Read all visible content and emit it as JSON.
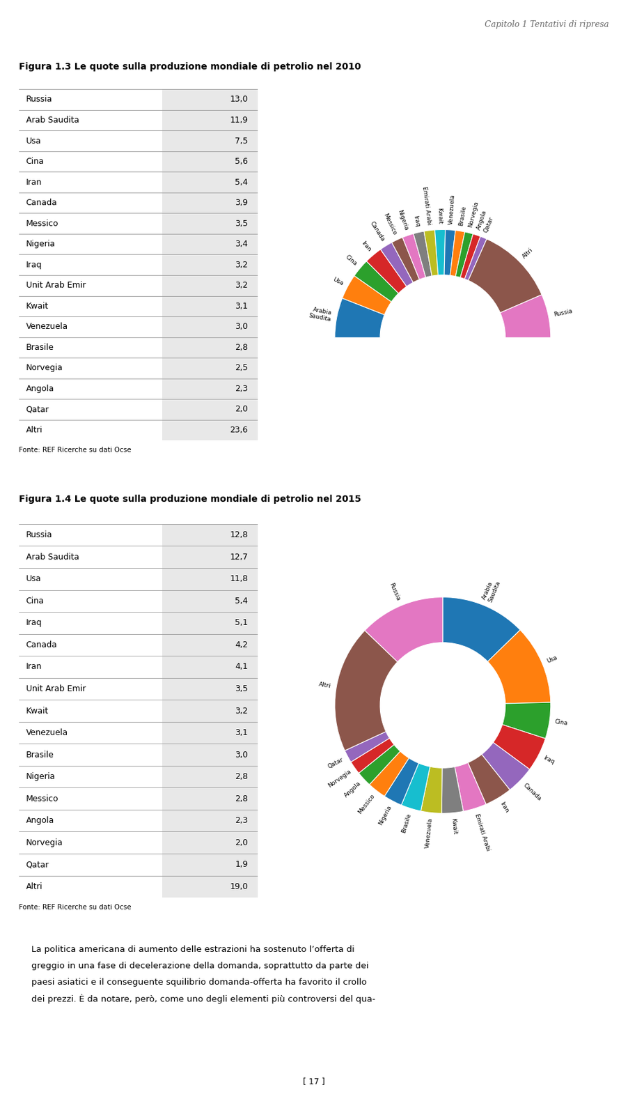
{
  "annotations": [
    "Capitolo 1 Tentativi di ripresa",
    "La politica americana di aumento delle estrazioni ha sostenuto l’offerta di",
    "greggio in una fase di decelerazione della domanda, soprattutto da parte dei",
    "paesi asiatici e il conseguente squilibrio domanda-offerta ha favorito il crollo",
    "dei prezzi. È da notare, però, come uno degli elementi più controversi del qua-",
    "[ 17 ]"
  ],
  "chart_data": [
    {
      "type": "table",
      "title": "Figura 1.3 Le quote sulla produzione mondiale di petrolio nel 2010",
      "categories": [
        "Russia",
        "Arab Saudita",
        "Usa",
        "Cina",
        "Iran",
        "Canada",
        "Messico",
        "Nigeria",
        "Iraq",
        "Unit Arab Emir",
        "Kwait",
        "Venezuela",
        "Brasile",
        "Norvegia",
        "Angola",
        "Qatar",
        "Altri"
      ],
      "values": [
        13.0,
        11.9,
        7.5,
        5.6,
        5.4,
        3.9,
        3.5,
        3.4,
        3.2,
        3.2,
        3.1,
        3.0,
        2.8,
        2.5,
        2.3,
        2.0,
        23.6
      ],
      "value_labels": [
        "13,0",
        "11,9",
        "7,5",
        "5,6",
        "5,4",
        "3,9",
        "3,5",
        "3,4",
        "3,2",
        "3,2",
        "3,1",
        "3,0",
        "2,8",
        "2,5",
        "2,3",
        "2,0",
        "23,6"
      ],
      "annotations": [
        "Fonte: REF Ricerche su dati Ocse"
      ]
    },
    {
      "type": "semidonut",
      "categories": [
        "Arabia\nSaudita",
        "Usa",
        "Cina",
        "Iran",
        "Canada",
        "Messico",
        "Nigeria",
        "Iraq",
        "Emirati Arabi",
        "Kwait",
        "Venezuela",
        "Brasile",
        "Norvegia",
        "Angola",
        "Qatar",
        "Altri",
        "Russia"
      ],
      "values": [
        11.9,
        7.5,
        5.6,
        5.4,
        3.9,
        3.5,
        3.4,
        3.2,
        3.2,
        3.1,
        3.0,
        2.8,
        2.5,
        2.3,
        2.0,
        23.6,
        13.0
      ]
    },
    {
      "type": "table",
      "title": "Figura 1.4 Le quote sulla produzione mondiale di petrolio nel 2015",
      "categories": [
        "Russia",
        "Arab Saudita",
        "Usa",
        "Cina",
        "Iraq",
        "Canada",
        "Iran",
        "Unit Arab Emir",
        "Kwait",
        "Venezuela",
        "Brasile",
        "Nigeria",
        "Messico",
        "Angola",
        "Norvegia",
        "Qatar",
        "Altri"
      ],
      "values": [
        12.8,
        12.7,
        11.8,
        5.4,
        5.1,
        4.2,
        4.1,
        3.5,
        3.2,
        3.1,
        3.0,
        2.8,
        2.8,
        2.3,
        2.0,
        1.9,
        19.0
      ],
      "value_labels": [
        "12,8",
        "12,7",
        "11,8",
        "5,4",
        "5,1",
        "4,2",
        "4,1",
        "3,5",
        "3,2",
        "3,1",
        "3,0",
        "2,8",
        "2,8",
        "2,3",
        "2,0",
        "1,9",
        "19,0"
      ],
      "annotations": [
        "Fonte: REF Ricerche su dati Ocse"
      ]
    },
    {
      "type": "donut",
      "categories": [
        "Arabia\nSaudita",
        "Usa",
        "Cina",
        "Iraq",
        "Canada",
        "Iran",
        "Emirati Arabi",
        "Kwait",
        "Venezuela",
        "Brasile",
        "Nigeria",
        "Messico",
        "Angola",
        "Norvegia",
        "Qatar",
        "Altri",
        "Russia"
      ],
      "values": [
        12.7,
        11.8,
        5.4,
        5.1,
        4.2,
        4.1,
        3.5,
        3.2,
        3.1,
        3.0,
        2.8,
        2.8,
        2.3,
        2.0,
        1.9,
        19.0,
        12.8
      ]
    }
  ]
}
